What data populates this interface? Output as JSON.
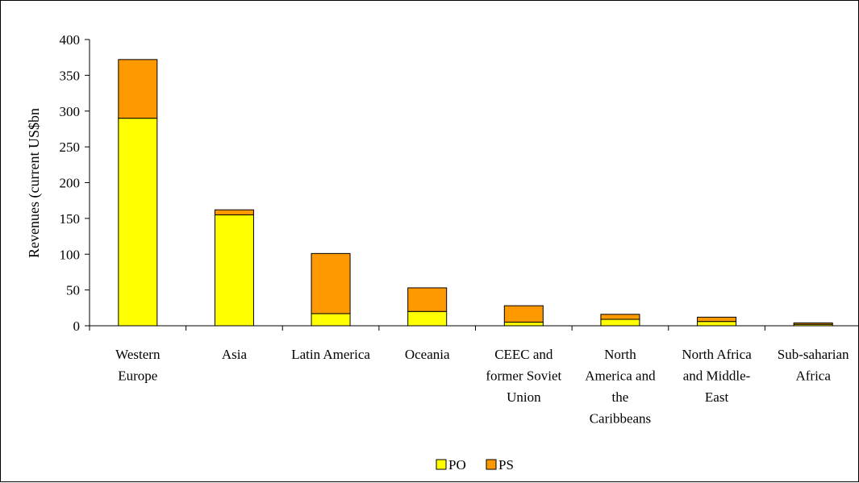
{
  "chart_data": {
    "type": "bar",
    "stacked": true,
    "title": "",
    "xlabel": "",
    "ylabel": "Revenues (current US$bn",
    "ylim": [
      0,
      400
    ],
    "yticks": [
      "0",
      "50",
      "100",
      "150",
      "200",
      "250",
      "300",
      "350",
      "400"
    ],
    "grid": false,
    "legend_position": "bottom",
    "categories": [
      [
        "Western",
        "Europe"
      ],
      [
        "Asia"
      ],
      [
        "Latin America"
      ],
      [
        "Oceania"
      ],
      [
        "CEEC and",
        "former Soviet",
        "Union"
      ],
      [
        "North",
        "America and",
        "the",
        "Caribbeans"
      ],
      [
        "North Africa",
        "and Middle-",
        "East"
      ],
      [
        "Sub-saharian",
        "Africa"
      ]
    ],
    "series": [
      {
        "name": "PO",
        "color": "#FFFF00",
        "values": [
          290,
          155,
          17,
          20,
          5,
          9,
          6,
          2
        ]
      },
      {
        "name": "PS",
        "color": "#FF9900",
        "values": [
          82,
          7,
          84,
          33,
          23,
          7,
          6,
          2
        ]
      }
    ]
  }
}
